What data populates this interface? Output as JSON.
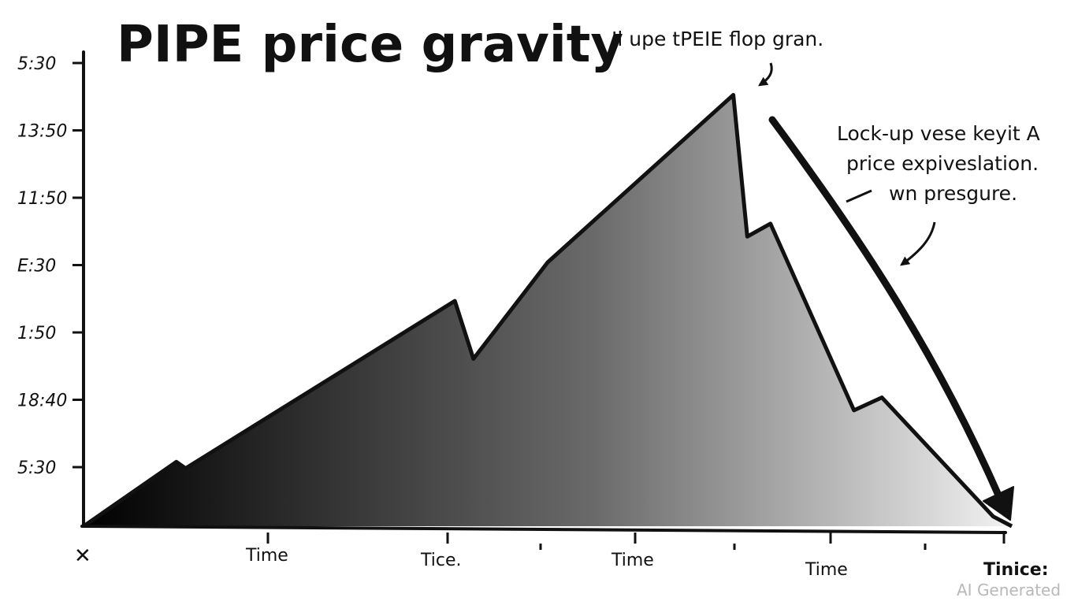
{
  "chart_data": {
    "type": "area",
    "title": "PIPE price gravity",
    "xlabel": "",
    "ylabel": "",
    "y_tick_labels": [
      "5:30",
      "13:50",
      "11:50",
      "E:30",
      "1:50",
      "18:40",
      "5:30"
    ],
    "x_tick_labels": [
      "Time",
      "Tice.",
      "Time",
      "Time",
      "Tinice:"
    ],
    "origin_marker": "✕",
    "x": [
      0,
      1,
      1.1,
      4,
      4.2,
      5,
      7,
      7.15,
      7.4,
      8.3,
      8.6,
      9.8,
      10
    ],
    "values": [
      0,
      1,
      0.9,
      3.5,
      2.6,
      4.1,
      6.7,
      4.5,
      4.7,
      1.8,
      2.0,
      0.15,
      0
    ],
    "ylim": [
      0,
      7
    ],
    "xlim": [
      0,
      10
    ],
    "grid": false,
    "legend": "none",
    "colors": {
      "fill_left": "#000000",
      "fill_mid": "#6a6a6a",
      "fill_right": "#f2f2f2",
      "stroke": "#111111"
    },
    "annotations": [
      {
        "lines": [
          "Il upe tPEIE flop gran."
        ]
      },
      {
        "lines": [
          "Lock-up vese keyit A",
          "price expiveslation.",
          "wn presgure."
        ]
      }
    ]
  },
  "watermark": "AI Generated"
}
